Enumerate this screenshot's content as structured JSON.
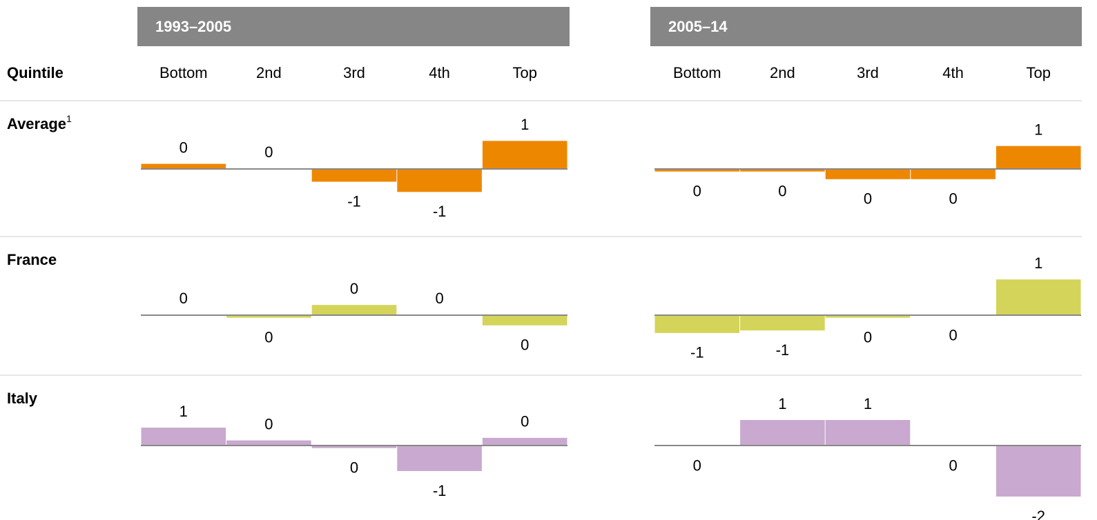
{
  "chart_data": {
    "type": "bar",
    "row_header": "Quintile",
    "panels": [
      {
        "title": "1993–2005",
        "categories": [
          "Bottom",
          "2nd",
          "3rd",
          "4th",
          "Top"
        ]
      },
      {
        "title": "2005–14",
        "categories": [
          "Bottom",
          "2nd",
          "3rd",
          "4th",
          "Top"
        ]
      }
    ],
    "rows": [
      {
        "name": "Average",
        "footnote": "1",
        "color": "#ee8700",
        "series": [
          {
            "values": [
              0.2,
              0.02,
              -0.5,
              -0.9,
              1.1
            ],
            "value_labels": [
              "0",
              "0",
              "-1",
              "-1",
              "1"
            ]
          },
          {
            "values": [
              -0.1,
              -0.1,
              -0.4,
              -0.4,
              0.9
            ],
            "value_labels": [
              "0",
              "0",
              "0",
              "0",
              "1"
            ]
          }
        ]
      },
      {
        "name": "France",
        "color": "#d4d45a",
        "series": [
          {
            "values": [
              0.02,
              -0.1,
              0.4,
              0.02,
              -0.4
            ],
            "value_labels": [
              "0",
              "0",
              "0",
              "0",
              "0"
            ]
          },
          {
            "values": [
              -0.7,
              -0.6,
              -0.1,
              -0.02,
              1.4
            ],
            "value_labels": [
              "-1",
              "-1",
              "0",
              "0",
              "1"
            ]
          }
        ]
      },
      {
        "name": "Italy",
        "color": "#c9a9cf",
        "series": [
          {
            "values": [
              0.7,
              0.2,
              -0.1,
              -1.0,
              0.3
            ],
            "value_labels": [
              "1",
              "0",
              "0",
              "-1",
              "0"
            ]
          },
          {
            "values": [
              -0.02,
              1.0,
              1.0,
              -0.02,
              -2.0
            ],
            "value_labels": [
              "0",
              "1",
              "1",
              "0",
              "-2"
            ]
          }
        ]
      }
    ]
  }
}
